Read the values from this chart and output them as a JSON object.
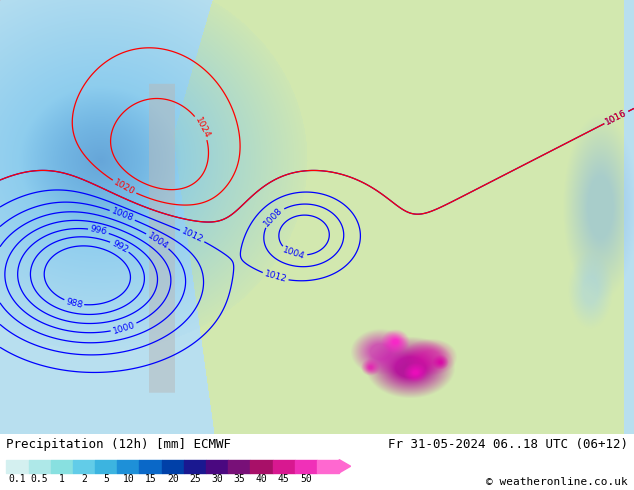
{
  "title_left": "Precipitation (12h) [mm] ECMWF",
  "title_right": "Fr 31-05-2024 06..18 UTC (06+12)",
  "copyright": "© weatheronline.co.uk",
  "tick_strs": [
    "0.1",
    "0.5",
    "1",
    "2",
    "5",
    "10",
    "15",
    "20",
    "25",
    "30",
    "35",
    "40",
    "45",
    "50"
  ],
  "cb_colors": [
    "#d4f0f0",
    "#aee8e8",
    "#88e0e0",
    "#62cce8",
    "#3cb4e0",
    "#1e90d8",
    "#0a68c8",
    "#0040a8",
    "#1a1890",
    "#4a0880",
    "#781078",
    "#a81068",
    "#d81890",
    "#f030b8",
    "#ff68d0"
  ],
  "bg_color": "#ffffff",
  "ocean_color": "#b8dff0",
  "land_color": "#d4e8b0",
  "precip_blue_color": "#90c8e8",
  "title_fontsize": 9,
  "copyright_fontsize": 8,
  "cb_label_fontsize": 7,
  "contour_fontsize": 6.5
}
